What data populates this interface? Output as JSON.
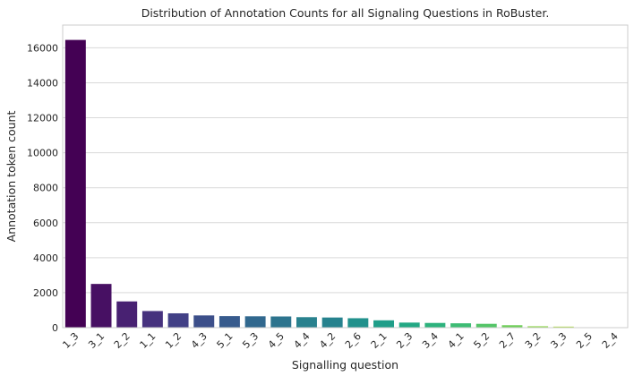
{
  "chart_data": {
    "type": "bar",
    "title": "Distribution of Annotation Counts for all Signaling Questions in RoBuster.",
    "xlabel": "Signalling question",
    "ylabel": "Annotation token count",
    "ylim": [
      0,
      17300
    ],
    "yticks": [
      0,
      2000,
      4000,
      6000,
      8000,
      10000,
      12000,
      14000,
      16000
    ],
    "grid": "y",
    "legend": "none",
    "categories": [
      "1_3",
      "3_1",
      "2_2",
      "1_1",
      "1_2",
      "4_3",
      "5_1",
      "5_3",
      "4_5",
      "4_4",
      "4_2",
      "2_6",
      "2_1",
      "2_3",
      "3_4",
      "4_1",
      "5_2",
      "2_7",
      "3_2",
      "3_3",
      "2_5",
      "2_4"
    ],
    "values": [
      16450,
      2500,
      1500,
      950,
      820,
      700,
      660,
      650,
      640,
      600,
      580,
      540,
      420,
      290,
      270,
      250,
      220,
      140,
      80,
      60,
      20,
      10
    ],
    "colors": [
      "#440154",
      "#471063",
      "#482172",
      "#46327e",
      "#424086",
      "#3c4f8a",
      "#375b8d",
      "#31688e",
      "#2d748e",
      "#29818e",
      "#26828e",
      "#21918c",
      "#1f9e89",
      "#22a884",
      "#2db27d",
      "#3dbc74",
      "#54c568",
      "#6ece58",
      "#8bd646",
      "#a8db34",
      "#c2df23",
      "#dde318"
    ]
  }
}
